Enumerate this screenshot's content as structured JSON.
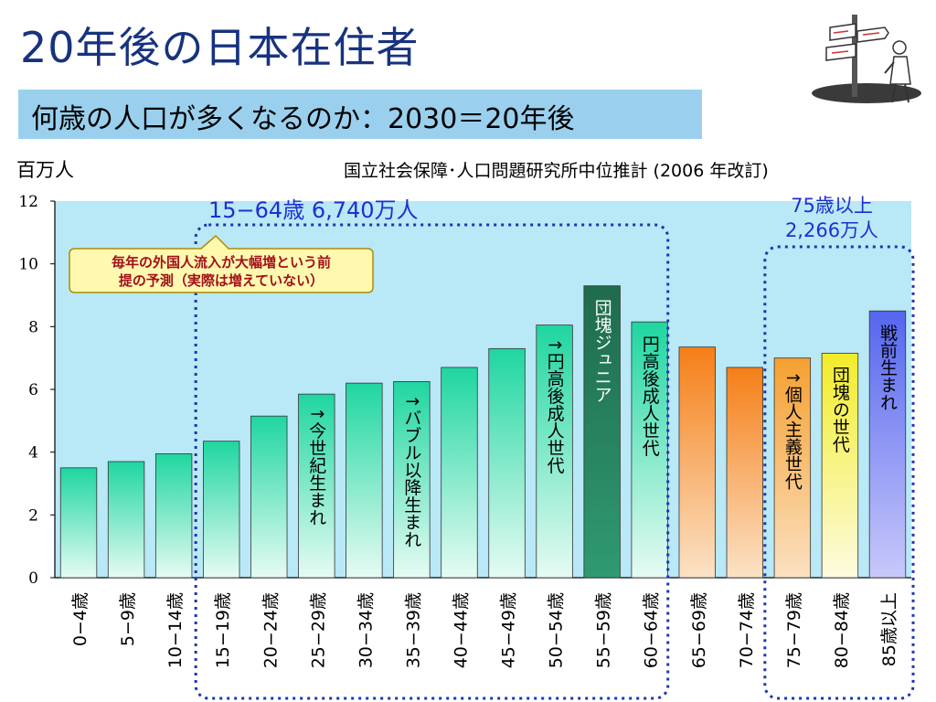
{
  "page": {
    "title": "20年後の日本在住者",
    "subtitle": "何歳の人口が多くなるのか：2030＝20年後",
    "unit_label": "百万人",
    "source": "国立社会保障･人口問題研究所中位推計 (2006 年改訂)",
    "icon": "signpost-person-clipart-icon"
  },
  "chart_data": {
    "type": "bar",
    "categories": [
      "0−4歳",
      "5−9歳",
      "10−14歳",
      "15−19歳",
      "20−24歳",
      "25−29歳",
      "30−34歳",
      "35−39歳",
      "40−44歳",
      "45−49歳",
      "50−54歳",
      "55−59歳",
      "60−64歳",
      "65−69歳",
      "70−74歳",
      "75−79歳",
      "80−84歳",
      "85歳以上"
    ],
    "values": [
      3.5,
      3.7,
      3.95,
      4.35,
      5.15,
      5.85,
      6.2,
      6.25,
      6.7,
      7.3,
      8.05,
      9.3,
      8.15,
      7.35,
      6.7,
      7.0,
      7.15,
      8.5
    ],
    "ylim": [
      0,
      12
    ],
    "yticks": [
      0,
      2,
      4,
      6,
      8,
      10,
      12
    ],
    "grid": false,
    "colors": {
      "working_age": "#1fd6a0",
      "dankai_junior": "#1f6b4c",
      "elderly": "#f57f17",
      "individualism": "#f5a030",
      "dankai": "#f2ec2a",
      "prewar": "#5566ee",
      "plot_background": "#b9e8f6",
      "group_outline": "#1b36b0"
    },
    "bar_groups": [
      "working_age",
      "working_age",
      "working_age",
      "working_age",
      "working_age",
      "working_age",
      "working_age",
      "working_age",
      "working_age",
      "working_age",
      "working_age",
      "dankai_junior",
      "working_age",
      "elderly",
      "elderly",
      "individualism",
      "dankai",
      "prewar"
    ],
    "bar_labels": [
      {
        "index": 5,
        "text": "↑今世紀生まれ"
      },
      {
        "index": 7,
        "text": "↑バブル以降生まれ"
      },
      {
        "index": 10,
        "text": "↑円高後成人世代"
      },
      {
        "index": 11,
        "text": "団塊ジュニア"
      },
      {
        "index": 12,
        "text": "円高後成人世代"
      },
      {
        "index": 15,
        "text": "↑個人主義世代"
      },
      {
        "index": 16,
        "text": "団塊の世代"
      },
      {
        "index": 17,
        "text": "戦前生まれ"
      }
    ],
    "annotations": {
      "working_age_label": "15−64歳 6,740万人",
      "elderly_label_line1": "75歳以上",
      "elderly_label_line2": "2,266万人",
      "callout_line1": "毎年の外国人流入が大幅増という前",
      "callout_line2": "提の予測（実際は増えていない）"
    }
  }
}
